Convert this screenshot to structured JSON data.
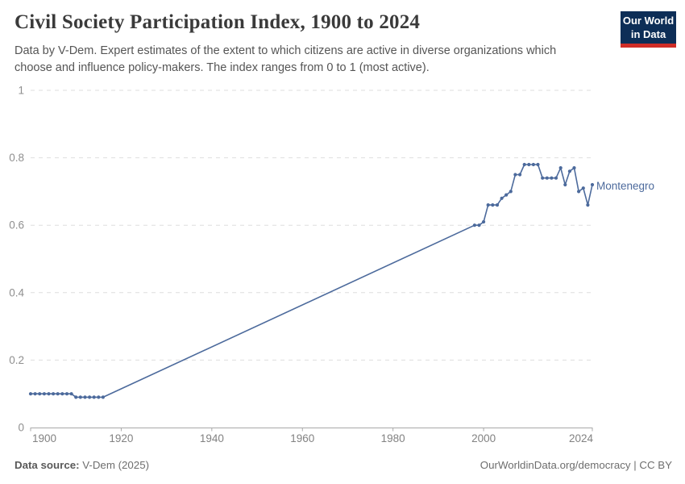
{
  "header": {
    "title": "Civil Society Participation Index, 1900 to 2024",
    "subtitle": "Data by V-Dem. Expert estimates of the extent to which citizens are active in diverse organizations which choose and influence policy-makers. The index ranges from 0 to 1 (most active)."
  },
  "logo": {
    "line1": "Our World",
    "line2": "in Data",
    "bg_color": "#0d2e57",
    "accent_color": "#cf2d27"
  },
  "chart_data": {
    "type": "line",
    "title": "Civil Society Participation Index, 1900 to 2024",
    "entity_label": "Montenegro",
    "line_color": "#4c6a9c",
    "grid": "horizontal dashed",
    "legend_position": "line-end-label",
    "xlim": [
      1900,
      2024
    ],
    "ylim": [
      0,
      1
    ],
    "x_ticks": [
      1900,
      1920,
      1940,
      1960,
      1980,
      2000,
      2024
    ],
    "y_ticks": [
      0,
      0.2,
      0.4,
      0.6,
      0.8,
      1
    ],
    "gap_note": "No data 1917-1997; chart bridges the gap with a straight unmarked line from 1916 to 1998",
    "series": [
      {
        "name": "Montenegro",
        "points": [
          [
            1900,
            0.1
          ],
          [
            1901,
            0.1
          ],
          [
            1902,
            0.1
          ],
          [
            1903,
            0.1
          ],
          [
            1904,
            0.1
          ],
          [
            1905,
            0.1
          ],
          [
            1906,
            0.1
          ],
          [
            1907,
            0.1
          ],
          [
            1908,
            0.1
          ],
          [
            1909,
            0.1
          ],
          [
            1910,
            0.09
          ],
          [
            1911,
            0.09
          ],
          [
            1912,
            0.09
          ],
          [
            1913,
            0.09
          ],
          [
            1914,
            0.09
          ],
          [
            1915,
            0.09
          ],
          [
            1916,
            0.09
          ],
          [
            1998,
            0.6
          ],
          [
            1999,
            0.6
          ],
          [
            2000,
            0.61
          ],
          [
            2001,
            0.66
          ],
          [
            2002,
            0.66
          ],
          [
            2003,
            0.66
          ],
          [
            2004,
            0.68
          ],
          [
            2005,
            0.69
          ],
          [
            2006,
            0.7
          ],
          [
            2007,
            0.75
          ],
          [
            2008,
            0.75
          ],
          [
            2009,
            0.78
          ],
          [
            2010,
            0.78
          ],
          [
            2011,
            0.78
          ],
          [
            2012,
            0.78
          ],
          [
            2013,
            0.74
          ],
          [
            2014,
            0.74
          ],
          [
            2015,
            0.74
          ],
          [
            2016,
            0.74
          ],
          [
            2017,
            0.77
          ],
          [
            2018,
            0.72
          ],
          [
            2019,
            0.76
          ],
          [
            2020,
            0.77
          ],
          [
            2021,
            0.7
          ],
          [
            2022,
            0.71
          ],
          [
            2023,
            0.66
          ],
          [
            2024,
            0.72
          ]
        ]
      }
    ]
  },
  "footer": {
    "data_source_label": "Data source:",
    "data_source_value": " V-Dem (2025)",
    "link_text": "OurWorldinData.org/democracy | CC BY"
  }
}
